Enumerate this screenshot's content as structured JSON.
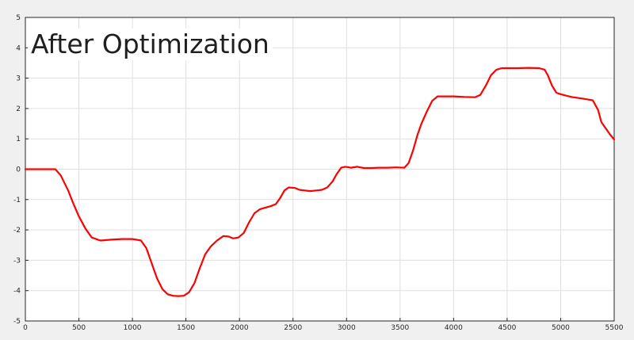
{
  "chart_data": {
    "type": "line",
    "title": "After Optimization",
    "xlabel": "",
    "ylabel": "",
    "xlim": [
      0,
      5500
    ],
    "ylim": [
      -5,
      5
    ],
    "x_ticks": [
      0,
      500,
      1000,
      1500,
      2000,
      2500,
      3000,
      3500,
      4000,
      4500,
      5000,
      5500
    ],
    "y_ticks": [
      -5,
      -4,
      -3,
      -2,
      -1,
      0,
      1,
      2,
      3,
      4,
      5
    ],
    "grid": true,
    "series": [
      {
        "color": "#ff0000",
        "x": [
          0,
          150,
          280,
          330,
          400,
          450,
          500,
          560,
          620,
          700,
          800,
          900,
          1000,
          1080,
          1130,
          1180,
          1230,
          1280,
          1330,
          1380,
          1430,
          1480,
          1530,
          1580,
          1630,
          1680,
          1730,
          1790,
          1850,
          1900,
          1940,
          1990,
          2040,
          2090,
          2140,
          2190,
          2240,
          2290,
          2340,
          2380,
          2420,
          2460,
          2520,
          2560,
          2610,
          2660,
          2720,
          2770,
          2820,
          2870,
          2910,
          2950,
          2990,
          3040,
          3100,
          3160,
          3230,
          3300,
          3380,
          3460,
          3540,
          3580,
          3620,
          3660,
          3700,
          3750,
          3800,
          3850,
          3900,
          4000,
          4100,
          4200,
          4250,
          4300,
          4350,
          4400,
          4450,
          4500,
          4600,
          4700,
          4800,
          4850,
          4880,
          4920,
          4960,
          5000,
          5100,
          5200,
          5300,
          5350,
          5380,
          5420,
          5460,
          5500
        ],
        "y": [
          0.0,
          0.0,
          0.0,
          -0.2,
          -0.7,
          -1.15,
          -1.55,
          -1.95,
          -2.25,
          -2.35,
          -2.32,
          -2.3,
          -2.3,
          -2.35,
          -2.6,
          -3.1,
          -3.6,
          -3.95,
          -4.12,
          -4.17,
          -4.18,
          -4.17,
          -4.05,
          -3.75,
          -3.25,
          -2.8,
          -2.55,
          -2.35,
          -2.2,
          -2.22,
          -2.28,
          -2.25,
          -2.1,
          -1.75,
          -1.45,
          -1.32,
          -1.27,
          -1.22,
          -1.15,
          -0.95,
          -0.7,
          -0.6,
          -0.62,
          -0.68,
          -0.7,
          -0.72,
          -0.7,
          -0.68,
          -0.6,
          -0.4,
          -0.15,
          0.05,
          0.08,
          0.05,
          0.08,
          0.04,
          0.04,
          0.05,
          0.05,
          0.06,
          0.05,
          0.2,
          0.6,
          1.1,
          1.5,
          1.9,
          2.25,
          2.4,
          2.4,
          2.4,
          2.38,
          2.37,
          2.45,
          2.75,
          3.1,
          3.28,
          3.33,
          3.33,
          3.33,
          3.34,
          3.33,
          3.28,
          3.1,
          2.75,
          2.52,
          2.47,
          2.38,
          2.33,
          2.27,
          1.95,
          1.55,
          1.35,
          1.15,
          0.98
        ]
      }
    ]
  }
}
